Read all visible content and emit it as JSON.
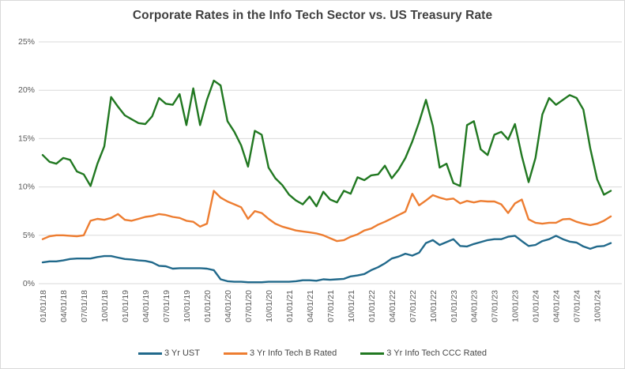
{
  "chart": {
    "title": "Corporate Rates in the Info Tech Sector vs. US Treasury Rate"
  },
  "colors": {
    "gridline": "#D9D9D9",
    "tick_text": "#595959",
    "title_text": "#404040",
    "border": "#D9D9D9",
    "background": "#FFFFFF"
  },
  "chart_data": {
    "type": "line",
    "title": "Corporate Rates in the Info Tech Sector vs. US Treasury Rate",
    "xlabel": "",
    "ylabel": "",
    "ylim": [
      0,
      25
    ],
    "y_ticks": [
      "0%",
      "5%",
      "10%",
      "15%",
      "20%",
      "25%"
    ],
    "grid": "horizontal",
    "legend_position": "bottom",
    "x_frequency": "monthly",
    "points_per_tick": 3,
    "x_tick_labels": [
      "01/01/18",
      "04/01/18",
      "07/01/18",
      "10/01/18",
      "01/01/19",
      "04/01/19",
      "07/01/19",
      "10/01/19",
      "01/01/20",
      "04/01/20",
      "07/01/20",
      "10/01/20",
      "01/01/21",
      "04/01/21",
      "07/01/21",
      "10/01/21",
      "01/01/22",
      "04/01/22",
      "07/01/22",
      "10/01/22",
      "01/01/23",
      "04/01/23",
      "07/01/23",
      "10/01/23",
      "01/01/24",
      "04/01/24",
      "07/01/24",
      "10/01/24"
    ],
    "series": [
      {
        "name": "3 Yr UST",
        "color": "#21698B",
        "values": [
          2.2,
          2.3,
          2.3,
          2.4,
          2.55,
          2.6,
          2.6,
          2.6,
          2.75,
          2.85,
          2.85,
          2.7,
          2.55,
          2.5,
          2.4,
          2.35,
          2.2,
          1.85,
          1.8,
          1.55,
          1.6,
          1.6,
          1.6,
          1.6,
          1.55,
          1.4,
          0.45,
          0.25,
          0.2,
          0.2,
          0.15,
          0.15,
          0.15,
          0.2,
          0.2,
          0.2,
          0.2,
          0.25,
          0.35,
          0.35,
          0.3,
          0.45,
          0.4,
          0.45,
          0.5,
          0.75,
          0.85,
          1.0,
          1.4,
          1.7,
          2.1,
          2.6,
          2.8,
          3.1,
          2.9,
          3.2,
          4.2,
          4.5,
          4.0,
          4.3,
          4.6,
          3.9,
          3.85,
          4.1,
          4.3,
          4.5,
          4.6,
          4.6,
          4.85,
          4.95,
          4.4,
          3.9,
          4.0,
          4.4,
          4.6,
          4.95,
          4.6,
          4.35,
          4.25,
          3.85,
          3.6,
          3.85,
          3.9,
          4.2
        ]
      },
      {
        "name": "3 Yr Info Tech B Rated",
        "color": "#ED7D31",
        "values": [
          4.6,
          4.9,
          5.0,
          5.0,
          4.95,
          4.9,
          5.0,
          6.5,
          6.7,
          6.6,
          6.8,
          7.2,
          6.6,
          6.5,
          6.7,
          6.9,
          7.0,
          7.2,
          7.1,
          6.9,
          6.8,
          6.5,
          6.4,
          5.9,
          6.2,
          9.6,
          8.9,
          8.5,
          8.2,
          7.9,
          6.7,
          7.5,
          7.3,
          6.7,
          6.2,
          5.9,
          5.7,
          5.5,
          5.4,
          5.3,
          5.2,
          5.0,
          4.7,
          4.4,
          4.5,
          4.85,
          5.1,
          5.5,
          5.7,
          6.1,
          6.4,
          6.75,
          7.1,
          7.45,
          9.3,
          8.1,
          8.6,
          9.15,
          8.9,
          8.7,
          8.8,
          8.3,
          8.55,
          8.4,
          8.55,
          8.5,
          8.5,
          8.2,
          7.3,
          8.3,
          8.7,
          6.65,
          6.3,
          6.2,
          6.3,
          6.3,
          6.65,
          6.7,
          6.4,
          6.2,
          6.05,
          6.2,
          6.5,
          6.95
        ]
      },
      {
        "name": "3 Yr Info Tech CCC Rated",
        "color": "#217821",
        "values": [
          13.3,
          12.6,
          12.4,
          13.0,
          12.8,
          11.6,
          11.3,
          10.1,
          12.4,
          14.2,
          19.3,
          18.3,
          17.4,
          17.0,
          16.6,
          16.5,
          17.3,
          19.2,
          18.6,
          18.5,
          19.6,
          16.4,
          20.2,
          16.4,
          19.0,
          21.0,
          20.5,
          16.8,
          15.7,
          14.3,
          12.1,
          15.8,
          15.4,
          12.0,
          10.9,
          10.2,
          9.2,
          8.6,
          8.2,
          9.0,
          8.0,
          9.5,
          8.7,
          8.4,
          9.6,
          9.3,
          11.0,
          10.7,
          11.2,
          11.3,
          12.2,
          10.9,
          11.8,
          13.0,
          14.7,
          16.7,
          19.0,
          16.3,
          12.0,
          12.4,
          10.4,
          10.1,
          16.4,
          16.8,
          13.9,
          13.3,
          15.4,
          15.7,
          14.9,
          16.5,
          13.2,
          10.5,
          13.0,
          17.5,
          19.2,
          18.5,
          19.0,
          19.5,
          19.2,
          18.0,
          14.0,
          10.8,
          9.2,
          9.6
        ]
      }
    ]
  }
}
